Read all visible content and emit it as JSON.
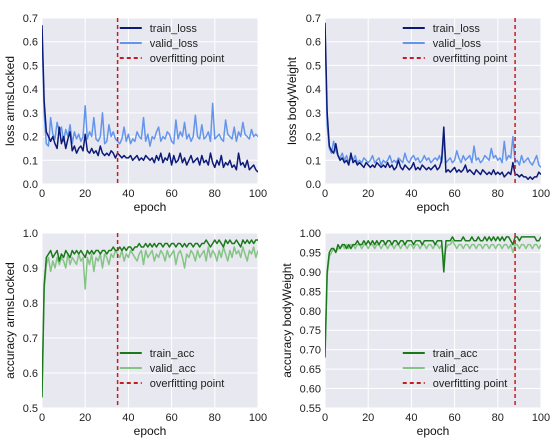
{
  "chart_data": [
    {
      "id": "loss-armsLocked",
      "type": "line",
      "title": "",
      "xlabel": "epoch",
      "ylabel": "loss armsLocked",
      "xlim": [
        0,
        100
      ],
      "ylim": [
        0,
        0.7
      ],
      "xticks": [
        0,
        20,
        40,
        60,
        80,
        100
      ],
      "yticks": [
        0.0,
        0.1,
        0.2,
        0.3,
        0.4,
        0.5,
        0.6,
        0.7
      ],
      "grid": true,
      "legend": "top-right",
      "overfitting_epoch": 35,
      "series": [
        {
          "name": "train_loss",
          "color": "#0c1a78",
          "values": [
            0.67,
            0.35,
            0.22,
            0.2,
            0.18,
            0.2,
            0.17,
            0.15,
            0.24,
            0.17,
            0.2,
            0.15,
            0.19,
            0.22,
            0.14,
            0.16,
            0.13,
            0.15,
            0.16,
            0.14,
            0.21,
            0.14,
            0.13,
            0.15,
            0.13,
            0.14,
            0.12,
            0.16,
            0.13,
            0.12,
            0.13,
            0.12,
            0.14,
            0.13,
            0.11,
            0.13,
            0.12,
            0.11,
            0.12,
            0.11,
            0.11,
            0.12,
            0.1,
            0.11,
            0.12,
            0.1,
            0.11,
            0.1,
            0.12,
            0.11,
            0.1,
            0.11,
            0.09,
            0.12,
            0.1,
            0.13,
            0.09,
            0.11,
            0.1,
            0.13,
            0.08,
            0.12,
            0.09,
            0.1,
            0.13,
            0.09,
            0.11,
            0.08,
            0.1,
            0.12,
            0.09,
            0.1,
            0.11,
            0.08,
            0.12,
            0.09,
            0.1,
            0.08,
            0.13,
            0.09,
            0.07,
            0.1,
            0.08,
            0.12,
            0.07,
            0.09,
            0.08,
            0.1,
            0.07,
            0.08,
            0.06,
            0.13,
            0.08,
            0.09,
            0.07,
            0.1,
            0.06,
            0.07,
            0.08,
            0.06,
            0.05
          ]
        },
        {
          "name": "valid_loss",
          "color": "#6495ed",
          "values": [
            0.65,
            0.3,
            0.17,
            0.16,
            0.28,
            0.21,
            0.19,
            0.26,
            0.22,
            0.24,
            0.18,
            0.23,
            0.2,
            0.25,
            0.17,
            0.22,
            0.19,
            0.21,
            0.18,
            0.2,
            0.33,
            0.19,
            0.22,
            0.2,
            0.28,
            0.19,
            0.18,
            0.2,
            0.3,
            0.17,
            0.18,
            0.25,
            0.2,
            0.22,
            0.19,
            0.18,
            0.17,
            0.19,
            0.24,
            0.18,
            0.21,
            0.17,
            0.19,
            0.18,
            0.22,
            0.2,
            0.19,
            0.28,
            0.18,
            0.21,
            0.16,
            0.2,
            0.19,
            0.22,
            0.24,
            0.18,
            0.2,
            0.19,
            0.22,
            0.21,
            0.18,
            0.17,
            0.27,
            0.19,
            0.22,
            0.2,
            0.26,
            0.19,
            0.21,
            0.18,
            0.2,
            0.29,
            0.2,
            0.19,
            0.25,
            0.19,
            0.2,
            0.22,
            0.18,
            0.34,
            0.19,
            0.2,
            0.21,
            0.19,
            0.18,
            0.27,
            0.21,
            0.2,
            0.19,
            0.24,
            0.18,
            0.22,
            0.2,
            0.26,
            0.21,
            0.2,
            0.19,
            0.23,
            0.2,
            0.21,
            0.2
          ]
        }
      ]
    },
    {
      "id": "loss-bodyWeight",
      "type": "line",
      "title": "",
      "xlabel": "epoch",
      "ylabel": "loss bodyWeight",
      "xlim": [
        0,
        100
      ],
      "ylim": [
        0,
        0.7
      ],
      "xticks": [
        0,
        20,
        40,
        60,
        80,
        100
      ],
      "yticks": [
        0.0,
        0.1,
        0.2,
        0.3,
        0.4,
        0.5,
        0.6,
        0.7
      ],
      "grid": true,
      "legend": "top-right",
      "overfitting_epoch": 88,
      "series": [
        {
          "name": "train_loss",
          "color": "#0c1a78",
          "values": [
            0.68,
            0.3,
            0.16,
            0.14,
            0.13,
            0.17,
            0.12,
            0.1,
            0.11,
            0.09,
            0.1,
            0.08,
            0.13,
            0.09,
            0.1,
            0.08,
            0.09,
            0.08,
            0.07,
            0.09,
            0.08,
            0.07,
            0.08,
            0.07,
            0.09,
            0.08,
            0.07,
            0.08,
            0.07,
            0.09,
            0.07,
            0.08,
            0.06,
            0.07,
            0.1,
            0.07,
            0.06,
            0.08,
            0.07,
            0.06,
            0.07,
            0.09,
            0.06,
            0.07,
            0.06,
            0.08,
            0.07,
            0.06,
            0.07,
            0.06,
            0.07,
            0.08,
            0.06,
            0.07,
            0.1,
            0.24,
            0.05,
            0.06,
            0.05,
            0.06,
            0.07,
            0.05,
            0.06,
            0.05,
            0.06,
            0.08,
            0.05,
            0.06,
            0.05,
            0.04,
            0.06,
            0.05,
            0.04,
            0.06,
            0.05,
            0.04,
            0.05,
            0.04,
            0.06,
            0.04,
            0.05,
            0.04,
            0.05,
            0.03,
            0.04,
            0.05,
            0.04,
            0.09,
            0.04,
            0.04,
            0.03,
            0.04,
            0.03,
            0.03,
            0.02,
            0.03,
            0.02,
            0.03,
            0.03,
            0.05,
            0.04
          ]
        },
        {
          "name": "valid_loss",
          "color": "#6495ed",
          "values": [
            0.66,
            0.25,
            0.15,
            0.13,
            0.18,
            0.14,
            0.12,
            0.11,
            0.13,
            0.1,
            0.12,
            0.09,
            0.11,
            0.1,
            0.12,
            0.09,
            0.1,
            0.09,
            0.11,
            0.1,
            0.09,
            0.1,
            0.12,
            0.09,
            0.1,
            0.11,
            0.08,
            0.1,
            0.09,
            0.1,
            0.12,
            0.09,
            0.1,
            0.09,
            0.11,
            0.1,
            0.09,
            0.13,
            0.1,
            0.09,
            0.11,
            0.12,
            0.1,
            0.11,
            0.09,
            0.1,
            0.12,
            0.1,
            0.11,
            0.09,
            0.1,
            0.11,
            0.1,
            0.12,
            0.09,
            0.2,
            0.09,
            0.1,
            0.11,
            0.09,
            0.1,
            0.14,
            0.11,
            0.09,
            0.12,
            0.1,
            0.11,
            0.12,
            0.09,
            0.16,
            0.1,
            0.11,
            0.09,
            0.1,
            0.12,
            0.11,
            0.1,
            0.15,
            0.11,
            0.12,
            0.1,
            0.11,
            0.09,
            0.18,
            0.1,
            0.12,
            0.11,
            0.2,
            0.09,
            0.1,
            0.08,
            0.12,
            0.09,
            0.1,
            0.11,
            0.09,
            0.08,
            0.1,
            0.12,
            0.08,
            0.07
          ]
        }
      ]
    },
    {
      "id": "accuracy-armsLocked",
      "type": "line",
      "title": "",
      "xlabel": "epoch",
      "ylabel": "accuracy armsLocked",
      "xlim": [
        0,
        100
      ],
      "ylim": [
        0.5,
        1.0
      ],
      "xticks": [
        0,
        20,
        40,
        60,
        80,
        100
      ],
      "yticks": [
        0.5,
        0.6,
        0.7,
        0.8,
        0.9,
        1.0
      ],
      "grid": true,
      "legend": "bottom-right",
      "overfitting_epoch": 35,
      "series": [
        {
          "name": "train_acc",
          "color": "#1a7a1a",
          "values": [
            0.53,
            0.85,
            0.93,
            0.94,
            0.95,
            0.93,
            0.94,
            0.95,
            0.92,
            0.94,
            0.93,
            0.95,
            0.94,
            0.93,
            0.95,
            0.94,
            0.95,
            0.94,
            0.95,
            0.94,
            0.93,
            0.95,
            0.94,
            0.95,
            0.94,
            0.95,
            0.95,
            0.94,
            0.95,
            0.95,
            0.94,
            0.95,
            0.95,
            0.96,
            0.95,
            0.95,
            0.96,
            0.95,
            0.96,
            0.95,
            0.96,
            0.96,
            0.95,
            0.96,
            0.96,
            0.97,
            0.96,
            0.96,
            0.97,
            0.96,
            0.97,
            0.96,
            0.97,
            0.96,
            0.97,
            0.97,
            0.96,
            0.97,
            0.97,
            0.96,
            0.97,
            0.97,
            0.96,
            0.97,
            0.97,
            0.96,
            0.97,
            0.96,
            0.97,
            0.97,
            0.96,
            0.97,
            0.97,
            0.96,
            0.97,
            0.97,
            0.98,
            0.97,
            0.96,
            0.97,
            0.98,
            0.97,
            0.98,
            0.97,
            0.96,
            0.98,
            0.97,
            0.98,
            0.97,
            0.97,
            0.98,
            0.97,
            0.96,
            0.98,
            0.97,
            0.98,
            0.97,
            0.98,
            0.97,
            0.98,
            0.98
          ]
        },
        {
          "name": "valid_acc",
          "color": "#86c486",
          "values": [
            0.55,
            0.84,
            0.91,
            0.93,
            0.89,
            0.92,
            0.9,
            0.93,
            0.91,
            0.93,
            0.92,
            0.9,
            0.94,
            0.91,
            0.93,
            0.92,
            0.91,
            0.94,
            0.92,
            0.93,
            0.84,
            0.93,
            0.91,
            0.94,
            0.89,
            0.93,
            0.92,
            0.94,
            0.9,
            0.94,
            0.93,
            0.91,
            0.94,
            0.93,
            0.95,
            0.94,
            0.93,
            0.95,
            0.92,
            0.94,
            0.93,
            0.95,
            0.94,
            0.93,
            0.92,
            0.94,
            0.95,
            0.91,
            0.95,
            0.93,
            0.94,
            0.95,
            0.92,
            0.94,
            0.93,
            0.95,
            0.94,
            0.92,
            0.95,
            0.93,
            0.94,
            0.95,
            0.91,
            0.94,
            0.95,
            0.93,
            0.9,
            0.94,
            0.93,
            0.95,
            0.94,
            0.92,
            0.95,
            0.93,
            0.94,
            0.95,
            0.92,
            0.96,
            0.93,
            0.95,
            0.94,
            0.92,
            0.95,
            0.93,
            0.96,
            0.94,
            0.92,
            0.95,
            0.93,
            0.96,
            0.94,
            0.95,
            0.93,
            0.96,
            0.94,
            0.92,
            0.95,
            0.94,
            0.96,
            0.93,
            0.95
          ]
        }
      ]
    },
    {
      "id": "accuracy-bodyWeight",
      "type": "line",
      "title": "",
      "xlabel": "epoch",
      "ylabel": "accuracy bodyWeight",
      "xlim": [
        0,
        100
      ],
      "ylim": [
        0.55,
        1.0
      ],
      "xticks": [
        0,
        20,
        40,
        60,
        80,
        100
      ],
      "yticks": [
        0.55,
        0.6,
        0.65,
        0.7,
        0.75,
        0.8,
        0.85,
        0.9,
        0.95,
        1.0
      ],
      "grid": true,
      "legend": "bottom-right",
      "overfitting_epoch": 88,
      "series": [
        {
          "name": "train_acc",
          "color": "#1a7a1a",
          "values": [
            0.68,
            0.9,
            0.95,
            0.96,
            0.96,
            0.95,
            0.97,
            0.96,
            0.97,
            0.97,
            0.96,
            0.97,
            0.96,
            0.97,
            0.97,
            0.98,
            0.97,
            0.97,
            0.98,
            0.97,
            0.98,
            0.97,
            0.98,
            0.97,
            0.98,
            0.97,
            0.98,
            0.98,
            0.97,
            0.98,
            0.98,
            0.97,
            0.98,
            0.98,
            0.97,
            0.98,
            0.98,
            0.97,
            0.98,
            0.98,
            0.98,
            0.97,
            0.98,
            0.98,
            0.98,
            0.97,
            0.98,
            0.98,
            0.98,
            0.98,
            0.98,
            0.97,
            0.98,
            0.98,
            0.98,
            0.9,
            0.98,
            0.98,
            0.98,
            0.99,
            0.98,
            0.98,
            0.98,
            0.98,
            0.99,
            0.98,
            0.98,
            0.98,
            0.99,
            0.98,
            0.98,
            0.99,
            0.98,
            0.98,
            0.99,
            0.98,
            0.99,
            0.98,
            0.99,
            0.98,
            0.99,
            0.98,
            0.99,
            0.98,
            0.99,
            0.99,
            0.98,
            0.97,
            0.99,
            0.99,
            0.98,
            0.99,
            0.99,
            0.99,
            0.99,
            0.99,
            0.99,
            0.99,
            0.98,
            0.98,
            0.99
          ]
        },
        {
          "name": "valid_acc",
          "color": "#86c486",
          "values": [
            0.7,
            0.89,
            0.94,
            0.95,
            0.96,
            0.95,
            0.96,
            0.96,
            0.97,
            0.96,
            0.97,
            0.96,
            0.97,
            0.97,
            0.96,
            0.97,
            0.97,
            0.96,
            0.97,
            0.97,
            0.96,
            0.97,
            0.97,
            0.96,
            0.97,
            0.97,
            0.96,
            0.97,
            0.97,
            0.96,
            0.97,
            0.97,
            0.96,
            0.97,
            0.97,
            0.96,
            0.97,
            0.97,
            0.96,
            0.97,
            0.97,
            0.96,
            0.97,
            0.97,
            0.96,
            0.97,
            0.97,
            0.96,
            0.97,
            0.97,
            0.96,
            0.97,
            0.97,
            0.96,
            0.97,
            0.93,
            0.96,
            0.97,
            0.97,
            0.98,
            0.97,
            0.96,
            0.97,
            0.97,
            0.96,
            0.97,
            0.97,
            0.96,
            0.97,
            0.97,
            0.96,
            0.97,
            0.97,
            0.96,
            0.97,
            0.97,
            0.96,
            0.97,
            0.97,
            0.96,
            0.97,
            0.97,
            0.96,
            0.97,
            0.97,
            0.96,
            0.97,
            0.95,
            0.97,
            0.97,
            0.96,
            0.97,
            0.97,
            0.96,
            0.97,
            0.97,
            0.96,
            0.97,
            0.97,
            0.96,
            0.97
          ]
        }
      ]
    }
  ],
  "overfitting_label": "overfitting point",
  "overfitting_color": "#c41e1e"
}
